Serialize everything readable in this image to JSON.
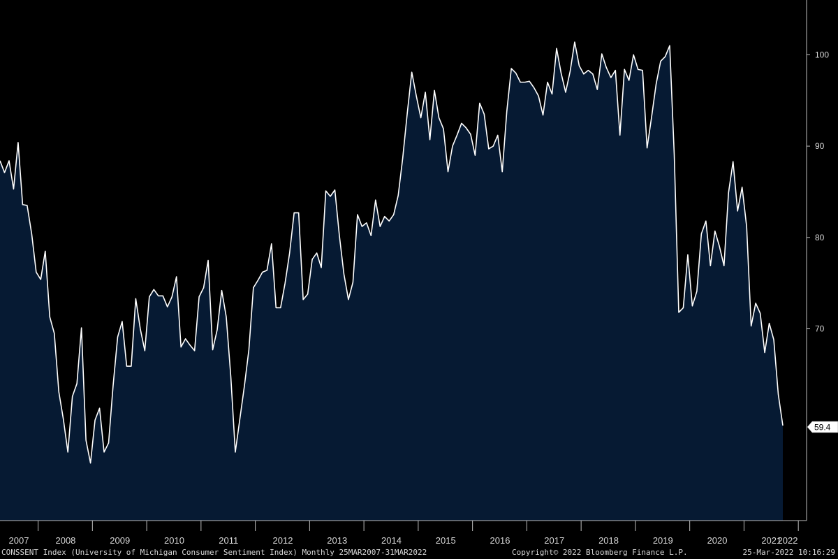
{
  "chart_data": {
    "type": "area",
    "title": "",
    "xlabel": "",
    "ylabel": "",
    "ylim": [
      49,
      106
    ],
    "x_ticks": [
      "2007",
      "2008",
      "2009",
      "2010",
      "2011",
      "2012",
      "2013",
      "2014",
      "2015",
      "2016",
      "2017",
      "2018",
      "2019",
      "2020",
      "2021",
      "2022"
    ],
    "y_ticks": [
      70,
      80,
      90,
      100
    ],
    "last_value_label": "59.4",
    "colors": {
      "fill": "#061a33",
      "line": "#ffffff",
      "background": "#000000",
      "text": "#d8d8d8"
    },
    "series": [
      {
        "values": [
          88.4,
          87.1,
          88.4,
          85.3,
          90.4,
          83.6,
          83.5,
          80.4,
          76.2,
          75.4,
          78.5,
          71.3,
          69.5,
          63.1,
          60.1,
          56.5,
          62.6,
          64.0,
          70.1,
          57.8,
          55.3,
          60.0,
          61.3,
          56.5,
          57.5,
          63.8,
          69.1,
          70.8,
          65.9,
          65.9,
          73.3,
          70.0,
          67.6,
          73.5,
          74.3,
          73.6,
          73.6,
          72.4,
          73.5,
          75.7,
          68.0,
          68.9,
          68.2,
          67.6,
          73.5,
          74.5,
          77.5,
          67.7,
          69.9,
          74.2,
          71.3,
          64.8,
          56.5,
          60.1,
          63.7,
          67.7,
          74.5,
          75.3,
          76.2,
          76.4,
          79.3,
          72.3,
          72.3,
          75.0,
          78.3,
          82.7,
          82.7,
          73.2,
          73.8,
          77.6,
          78.3,
          76.7,
          85.1,
          84.5,
          85.2,
          80.2,
          76.0,
          73.2,
          75.1,
          82.5,
          81.2,
          81.6,
          80.2,
          84.1,
          81.2,
          82.3,
          81.8,
          82.5,
          84.6,
          88.7,
          93.6,
          98.1,
          95.5,
          93.1,
          95.9,
          90.7,
          96.1,
          93.1,
          91.9,
          87.2,
          90.0,
          91.2,
          92.5,
          92.0,
          91.3,
          89.0,
          94.7,
          93.5,
          89.7,
          90.0,
          91.2,
          87.2,
          93.8,
          98.5,
          98.0,
          97.0,
          97.0,
          97.1,
          96.4,
          95.5,
          93.4,
          97.0,
          95.7,
          100.7,
          98.0,
          95.9,
          98.2,
          101.4,
          98.8,
          97.9,
          98.3,
          97.9,
          96.2,
          100.1,
          98.6,
          97.5,
          98.3,
          91.2,
          98.4,
          97.2,
          100.0,
          98.4,
          98.3,
          89.8,
          93.2,
          96.8,
          99.3,
          99.8,
          101.0,
          89.1,
          71.8,
          72.3,
          78.1,
          72.5,
          74.1,
          80.4,
          81.8,
          76.9,
          80.7,
          79.0,
          76.9,
          84.9,
          88.3,
          82.9,
          85.5,
          81.2,
          70.3,
          72.8,
          71.7,
          67.4,
          70.6,
          68.8,
          62.8,
          59.4
        ]
      }
    ]
  },
  "footer": {
    "description": "CONSSENT Index (University of Michigan Consumer Sentiment Index)  Monthly 25MAR2007-31MAR2022",
    "copyright": "Copyright© 2022 Bloomberg Finance L.P.",
    "timestamp": "25-Mar-2022 10:16:29"
  }
}
